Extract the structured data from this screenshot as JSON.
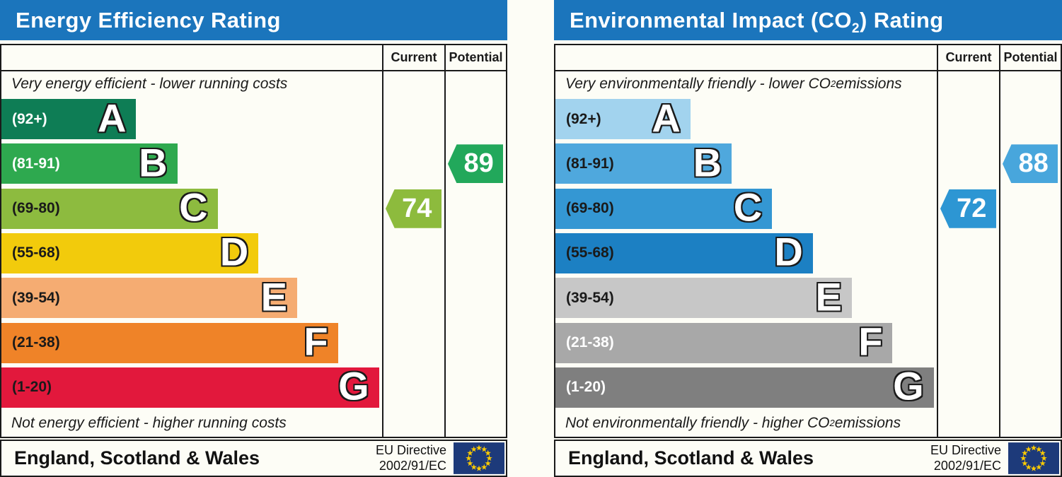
{
  "theme": {
    "header_bg": "#1b75bc",
    "border_color": "#1a1a1a"
  },
  "chart_data": [
    {
      "type": "bar",
      "name": "energy-efficiency-rating",
      "title": {
        "pre": "Energy Efficiency Rating",
        "sub": "",
        "post": ""
      },
      "columns": [
        "Current",
        "Potential"
      ],
      "caption_top": {
        "pre": "Very energy efficient - lower running costs",
        "sub": "",
        "post": ""
      },
      "caption_bottom": {
        "pre": "Not energy efficient - higher running costs",
        "sub": "",
        "post": ""
      },
      "bands": [
        {
          "letter": "A",
          "range": "(92+)",
          "min": 92,
          "max": 100,
          "width_pct": 35.4,
          "color": "#0e7d55",
          "range_color": "#ffffff"
        },
        {
          "letter": "B",
          "range": "(81-91)",
          "min": 81,
          "max": 91,
          "width_pct": 46.2,
          "color": "#2ea94f",
          "range_color": "#ffffff"
        },
        {
          "letter": "C",
          "range": "(69-80)",
          "min": 69,
          "max": 80,
          "width_pct": 56.8,
          "color": "#8dbb3f",
          "range_color": "#1a1a1a"
        },
        {
          "letter": "D",
          "range": "(55-68)",
          "min": 55,
          "max": 68,
          "width_pct": 67.5,
          "color": "#f2cb0c",
          "range_color": "#1a1a1a"
        },
        {
          "letter": "E",
          "range": "(39-54)",
          "min": 39,
          "max": 54,
          "width_pct": 77.7,
          "color": "#f5ac72",
          "range_color": "#1a1a1a"
        },
        {
          "letter": "F",
          "range": "(21-38)",
          "min": 21,
          "max": 38,
          "width_pct": 88.4,
          "color": "#ef8328",
          "range_color": "#1a1a1a"
        },
        {
          "letter": "G",
          "range": "(1-20)",
          "min": 1,
          "max": 20,
          "width_pct": 99.2,
          "color": "#e2183c",
          "range_color": "#1a1a1a"
        }
      ],
      "current": {
        "value": 74,
        "color": "#8dbb3d"
      },
      "potential": {
        "value": 89,
        "color": "#22a85b"
      },
      "footer": {
        "region": "England, Scotland & Wales",
        "directive_line1": "EU Directive",
        "directive_line2": "2002/91/EC"
      }
    },
    {
      "type": "bar",
      "name": "environmental-impact-co2-rating",
      "title": {
        "pre": "Environmental Impact (CO",
        "sub": "2",
        "post": ") Rating"
      },
      "columns": [
        "Current",
        "Potential"
      ],
      "caption_top": {
        "pre": "Very environmentally friendly - lower CO",
        "sub": "2",
        "post": " emissions"
      },
      "caption_bottom": {
        "pre": "Not environmentally friendly - higher CO",
        "sub": "2",
        "post": " emissions"
      },
      "bands": [
        {
          "letter": "A",
          "range": "(92+)",
          "min": 92,
          "max": 100,
          "width_pct": 35.4,
          "color": "#a2d3ee",
          "range_color": "#1a1a1a"
        },
        {
          "letter": "B",
          "range": "(81-91)",
          "min": 81,
          "max": 91,
          "width_pct": 46.2,
          "color": "#4fa8dd",
          "range_color": "#1a1a1a"
        },
        {
          "letter": "C",
          "range": "(69-80)",
          "min": 69,
          "max": 80,
          "width_pct": 56.8,
          "color": "#3497d3",
          "range_color": "#1a1a1a"
        },
        {
          "letter": "D",
          "range": "(55-68)",
          "min": 55,
          "max": 68,
          "width_pct": 67.5,
          "color": "#1c80c3",
          "range_color": "#1a1a1a"
        },
        {
          "letter": "E",
          "range": "(39-54)",
          "min": 39,
          "max": 54,
          "width_pct": 77.7,
          "color": "#c7c7c7",
          "range_color": "#1a1a1a"
        },
        {
          "letter": "F",
          "range": "(21-38)",
          "min": 21,
          "max": 38,
          "width_pct": 88.4,
          "color": "#a8a8a8",
          "range_color": "#ffffff"
        },
        {
          "letter": "G",
          "range": "(1-20)",
          "min": 1,
          "max": 20,
          "width_pct": 99.2,
          "color": "#7f7f7f",
          "range_color": "#ffffff"
        }
      ],
      "current": {
        "value": 72,
        "color": "#2d96d3"
      },
      "potential": {
        "value": 88,
        "color": "#48a6dc"
      },
      "footer": {
        "region": "England, Scotland & Wales",
        "directive_line1": "EU Directive",
        "directive_line2": "2002/91/EC"
      }
    }
  ]
}
